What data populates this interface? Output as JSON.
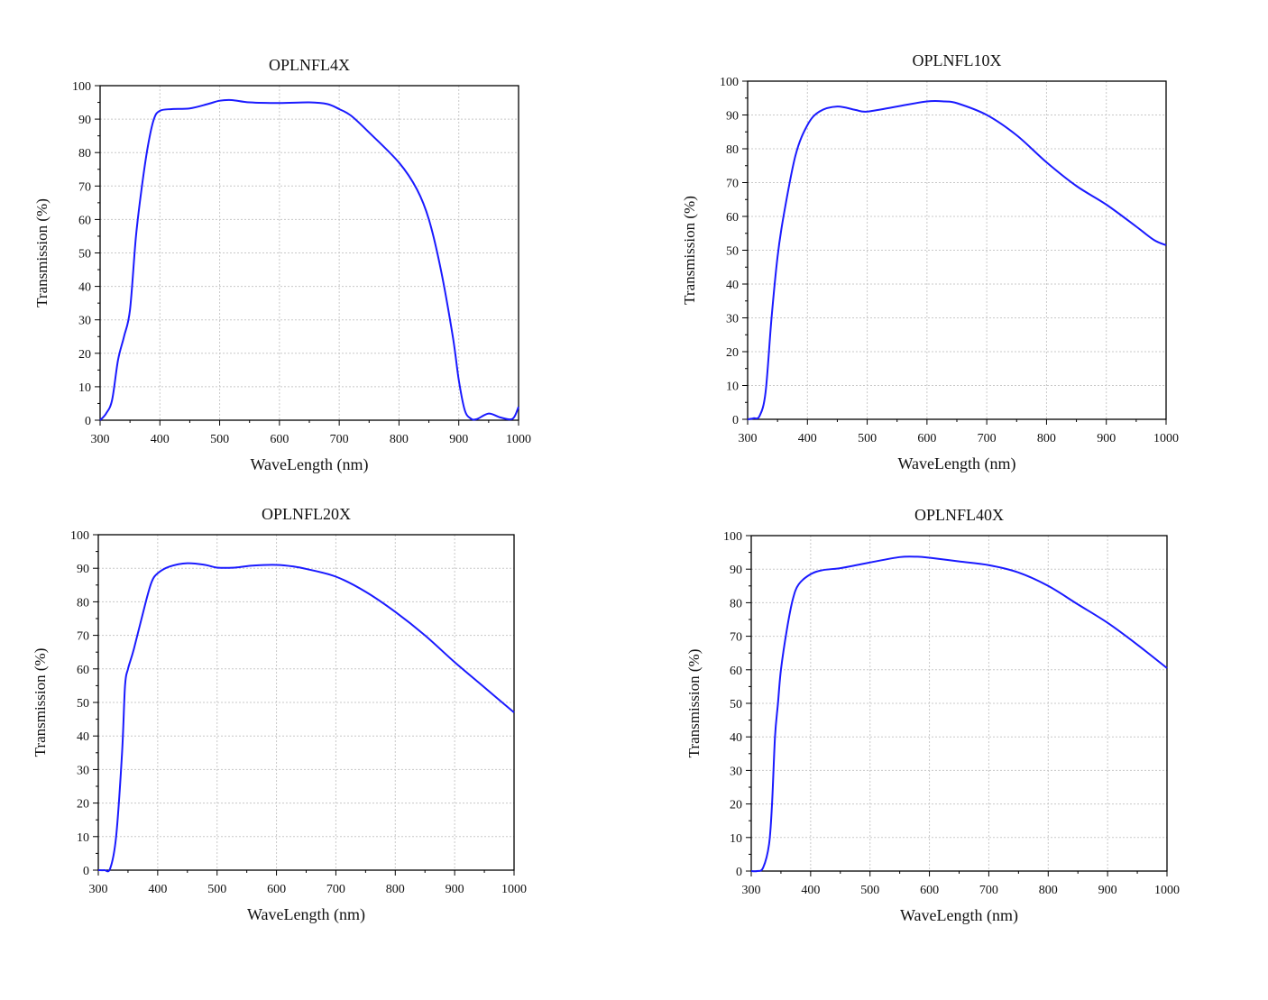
{
  "line_color": "#1a1aff",
  "chart_data": [
    {
      "type": "line",
      "title": "OPLNFL4X",
      "xlabel": "WaveLength (nm)",
      "ylabel": "Transmission (%)",
      "xlim": [
        300,
        1000
      ],
      "ylim": [
        0,
        100
      ],
      "xticks": [
        300,
        400,
        500,
        600,
        700,
        800,
        900,
        1000
      ],
      "yticks": [
        0,
        10,
        20,
        30,
        40,
        50,
        60,
        70,
        80,
        90,
        100
      ],
      "grid": true,
      "x": [
        300,
        310,
        320,
        330,
        340,
        350,
        360,
        370,
        380,
        390,
        400,
        420,
        450,
        480,
        500,
        520,
        550,
        600,
        650,
        680,
        700,
        720,
        750,
        800,
        830,
        850,
        870,
        890,
        900,
        910,
        920,
        930,
        950,
        970,
        990,
        1000
      ],
      "y": [
        0,
        2,
        6,
        18,
        25,
        33,
        55,
        70,
        82,
        90,
        92.5,
        93,
        93.2,
        94.5,
        95.5,
        95.7,
        95,
        94.8,
        95,
        94.5,
        93,
        91,
        86,
        77,
        69,
        60,
        45,
        25,
        12,
        3,
        0.5,
        0.3,
        2,
        0.8,
        0.4,
        4
      ]
    },
    {
      "type": "line",
      "title": "OPLNFL10X",
      "xlabel": "WaveLength (nm)",
      "ylabel": "Transmission (%)",
      "xlim": [
        300,
        1000
      ],
      "ylim": [
        0,
        100
      ],
      "xticks": [
        300,
        400,
        500,
        600,
        700,
        800,
        900,
        1000
      ],
      "yticks": [
        0,
        10,
        20,
        30,
        40,
        50,
        60,
        70,
        80,
        90,
        100
      ],
      "grid": true,
      "x": [
        300,
        310,
        320,
        330,
        340,
        350,
        360,
        380,
        400,
        420,
        450,
        480,
        500,
        550,
        600,
        630,
        650,
        700,
        750,
        800,
        850,
        900,
        950,
        980,
        1000
      ],
      "y": [
        0,
        0.3,
        1,
        8,
        30,
        48,
        60,
        78,
        87,
        91,
        92.5,
        91.5,
        91,
        92.5,
        94,
        94,
        93.5,
        90,
        84,
        76,
        69,
        63.5,
        57,
        53,
        51.5
      ]
    },
    {
      "type": "line",
      "title": "OPLNFL20X",
      "xlabel": "WaveLength (nm)",
      "ylabel": "Transmission (%)",
      "xlim": [
        300,
        1000
      ],
      "ylim": [
        0,
        100
      ],
      "xticks": [
        300,
        400,
        500,
        600,
        700,
        800,
        900,
        1000
      ],
      "yticks": [
        0,
        10,
        20,
        30,
        40,
        50,
        60,
        70,
        80,
        90,
        100
      ],
      "grid": true,
      "x": [
        300,
        310,
        320,
        330,
        340,
        345,
        350,
        360,
        380,
        390,
        400,
        420,
        450,
        480,
        500,
        530,
        560,
        600,
        630,
        650,
        700,
        750,
        800,
        850,
        900,
        950,
        1000
      ],
      "y": [
        0,
        0,
        0.5,
        10,
        35,
        55,
        60,
        66,
        80,
        86,
        88.5,
        90.5,
        91.5,
        91,
        90.2,
        90.2,
        90.8,
        91,
        90.5,
        89.8,
        87.5,
        83,
        77,
        70,
        62,
        54.5,
        47
      ]
    },
    {
      "type": "line",
      "title": "OPLNFL40X",
      "xlabel": "WaveLength (nm)",
      "ylabel": "Transmission (%)",
      "xlim": [
        300,
        1000
      ],
      "ylim": [
        0,
        100
      ],
      "xticks": [
        300,
        400,
        500,
        600,
        700,
        800,
        900,
        1000
      ],
      "yticks": [
        0,
        10,
        20,
        30,
        40,
        50,
        60,
        70,
        80,
        90,
        100
      ],
      "grid": true,
      "x": [
        300,
        310,
        320,
        330,
        335,
        340,
        345,
        350,
        360,
        370,
        380,
        400,
        420,
        450,
        480,
        500,
        550,
        580,
        600,
        650,
        700,
        750,
        800,
        850,
        900,
        950,
        1000
      ],
      "y": [
        0,
        0,
        1,
        8,
        20,
        40,
        50,
        60,
        72,
        81,
        85.5,
        88.5,
        89.7,
        90.3,
        91.3,
        92,
        93.6,
        93.7,
        93.4,
        92.3,
        91.2,
        89,
        85,
        79.5,
        74,
        67.5,
        60.5
      ]
    }
  ]
}
